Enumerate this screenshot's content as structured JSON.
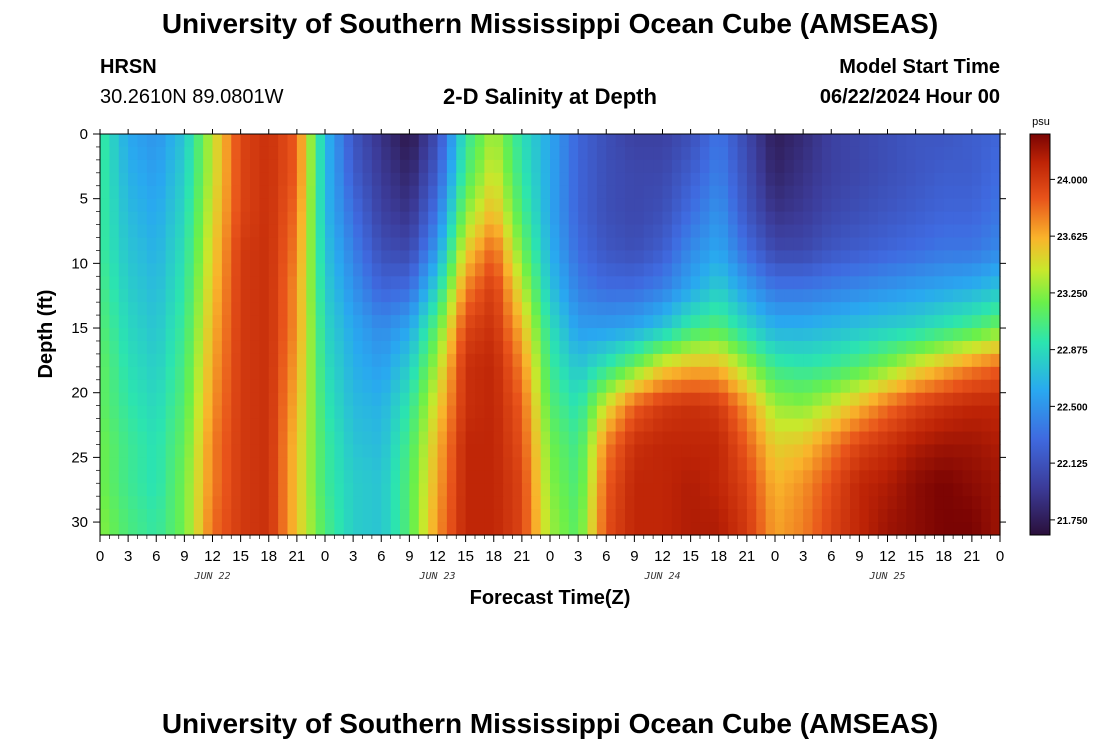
{
  "header": {
    "title": "University of Southern Mississippi Ocean Cube (AMSEAS)",
    "footer_title": "University of Southern Mississippi Ocean Cube (AMSEAS)",
    "station": "HRSN",
    "coords": "30.2610N  89.0801W",
    "subtitle": "2-D Salinity at Depth",
    "model_start_label": "Model Start Time",
    "model_start_value": "06/22/2024 Hour 00"
  },
  "chart_data": {
    "type": "heatmap",
    "title": "2-D Salinity at Depth",
    "xlabel": "Forecast Time(Z)",
    "ylabel": "Depth (ft)",
    "x_range_hours": [
      0,
      96
    ],
    "ylim": [
      0,
      31
    ],
    "x_tick_labels": [
      "0",
      "3",
      "6",
      "9",
      "12",
      "15",
      "18",
      "21",
      "0",
      "3",
      "6",
      "9",
      "12",
      "15",
      "18",
      "21",
      "0",
      "3",
      "6",
      "9",
      "12",
      "15",
      "18",
      "21",
      "0",
      "3",
      "6",
      "9",
      "12",
      "15",
      "18",
      "21",
      "0"
    ],
    "x_tick_hours": [
      0,
      3,
      6,
      9,
      12,
      15,
      18,
      21,
      24,
      27,
      30,
      33,
      36,
      39,
      42,
      45,
      48,
      51,
      54,
      57,
      60,
      63,
      66,
      69,
      72,
      75,
      78,
      81,
      84,
      87,
      90,
      93,
      96
    ],
    "day_labels": [
      "JUN 22",
      "JUN 23",
      "JUN 24",
      "JUN 25"
    ],
    "y_ticks": [
      0,
      5,
      10,
      15,
      20,
      25,
      30
    ],
    "y_tick_labels": [
      "0",
      "5",
      "10",
      "15",
      "20",
      "25",
      "30"
    ],
    "colorbar": {
      "unit": "psu",
      "min": 21.65,
      "max": 24.3,
      "ticks": [
        21.75,
        22.125,
        22.5,
        22.875,
        23.25,
        23.625,
        24.0
      ],
      "tick_labels": [
        "21.750",
        "22.125",
        "22.500",
        "22.875",
        "23.250",
        "23.625",
        "24.000"
      ]
    },
    "time_grid_hours": [
      0,
      3,
      6,
      9,
      12,
      15,
      18,
      21,
      24,
      27,
      30,
      33,
      36,
      39,
      42,
      45,
      48,
      51,
      54,
      57,
      60,
      63,
      66,
      69,
      72,
      75,
      78,
      81,
      84,
      87,
      90,
      93,
      96
    ],
    "depth_grid_ft": [
      0,
      3,
      6,
      9,
      12,
      15,
      18,
      21,
      24,
      27,
      30
    ],
    "salinity_psu": [
      [
        23.0,
        22.6,
        22.5,
        22.75,
        23.4,
        23.95,
        24.05,
        23.85,
        22.7,
        22.15,
        21.9,
        21.7,
        22.1,
        22.95,
        23.35,
        22.9,
        22.6,
        22.25,
        22.1,
        22.0,
        22.0,
        22.1,
        22.35,
        22.05,
        21.75,
        21.85,
        22.0,
        22.05,
        22.1,
        22.15,
        22.15,
        22.2,
        22.25
      ],
      [
        23.0,
        22.65,
        22.55,
        22.8,
        23.4,
        23.95,
        24.05,
        23.85,
        22.7,
        22.2,
        21.95,
        21.8,
        22.2,
        23.05,
        23.45,
        22.95,
        22.6,
        22.25,
        22.1,
        22.05,
        22.05,
        22.2,
        22.4,
        22.1,
        21.8,
        21.9,
        22.0,
        22.05,
        22.1,
        22.15,
        22.2,
        22.2,
        22.3
      ],
      [
        23.0,
        22.7,
        22.6,
        22.85,
        23.45,
        23.95,
        24.05,
        23.8,
        22.7,
        22.3,
        22.0,
        21.9,
        22.35,
        23.25,
        23.6,
        23.05,
        22.6,
        22.25,
        22.1,
        22.05,
        22.1,
        22.3,
        22.5,
        22.15,
        21.9,
        21.95,
        22.05,
        22.1,
        22.15,
        22.2,
        22.25,
        22.25,
        22.35
      ],
      [
        23.0,
        22.75,
        22.65,
        22.9,
        23.5,
        24.0,
        24.05,
        23.75,
        22.75,
        22.4,
        22.1,
        22.05,
        22.55,
        23.5,
        23.85,
        23.2,
        22.65,
        22.3,
        22.15,
        22.1,
        22.2,
        22.45,
        22.6,
        22.3,
        22.05,
        22.05,
        22.15,
        22.2,
        22.25,
        22.3,
        22.35,
        22.35,
        22.45
      ],
      [
        23.05,
        22.8,
        22.7,
        22.95,
        23.55,
        24.0,
        24.05,
        23.7,
        22.8,
        22.5,
        22.25,
        22.3,
        22.85,
        23.75,
        24.0,
        23.4,
        22.75,
        22.4,
        22.3,
        22.3,
        22.4,
        22.6,
        22.8,
        22.55,
        22.35,
        22.35,
        22.4,
        22.45,
        22.5,
        22.55,
        22.6,
        22.65,
        22.75
      ],
      [
        23.1,
        22.85,
        22.75,
        23.0,
        23.6,
        24.0,
        24.05,
        23.7,
        22.85,
        22.6,
        22.45,
        22.6,
        23.15,
        23.95,
        24.05,
        23.6,
        22.9,
        22.55,
        22.55,
        22.6,
        22.75,
        23.0,
        23.1,
        22.85,
        22.65,
        22.65,
        22.7,
        22.75,
        22.8,
        22.85,
        22.95,
        23.05,
        23.2
      ],
      [
        23.15,
        22.9,
        22.8,
        23.05,
        23.65,
        24.0,
        24.05,
        23.65,
        22.9,
        22.65,
        22.55,
        22.8,
        23.35,
        24.05,
        24.1,
        23.75,
        23.0,
        22.75,
        22.95,
        23.2,
        23.5,
        23.6,
        23.6,
        23.3,
        23.0,
        22.95,
        23.0,
        23.1,
        23.25,
        23.45,
        23.6,
        23.75,
        23.85
      ],
      [
        23.15,
        22.95,
        22.85,
        23.1,
        23.7,
        24.0,
        24.05,
        23.6,
        22.95,
        22.7,
        22.65,
        22.95,
        23.5,
        24.05,
        24.1,
        23.85,
        23.1,
        22.9,
        23.45,
        23.85,
        24.0,
        24.05,
        24.0,
        23.7,
        23.3,
        23.25,
        23.4,
        23.6,
        23.8,
        23.95,
        24.05,
        24.1,
        24.1
      ],
      [
        23.2,
        23.0,
        22.9,
        23.15,
        23.75,
        24.0,
        24.05,
        23.55,
        23.0,
        22.75,
        22.7,
        23.05,
        23.6,
        24.1,
        24.1,
        23.9,
        23.2,
        23.0,
        23.75,
        24.05,
        24.1,
        24.1,
        24.1,
        23.85,
        23.5,
        23.55,
        23.75,
        23.95,
        24.05,
        24.15,
        24.2,
        24.2,
        24.15
      ],
      [
        23.2,
        23.0,
        22.9,
        23.2,
        23.75,
        24.0,
        24.05,
        23.55,
        23.0,
        22.8,
        22.75,
        23.1,
        23.65,
        24.1,
        24.1,
        23.95,
        23.25,
        23.05,
        23.85,
        24.1,
        24.1,
        24.15,
        24.1,
        23.95,
        23.6,
        23.7,
        23.9,
        24.1,
        24.15,
        24.25,
        24.3,
        24.25,
        24.2
      ],
      [
        23.25,
        23.05,
        22.95,
        23.2,
        23.8,
        24.0,
        24.05,
        23.55,
        23.05,
        22.8,
        22.75,
        23.1,
        23.7,
        24.1,
        24.1,
        23.95,
        23.3,
        23.1,
        23.9,
        24.1,
        24.1,
        24.15,
        24.15,
        24.0,
        23.65,
        23.75,
        23.95,
        24.1,
        24.2,
        24.25,
        24.3,
        24.3,
        24.2
      ]
    ]
  }
}
